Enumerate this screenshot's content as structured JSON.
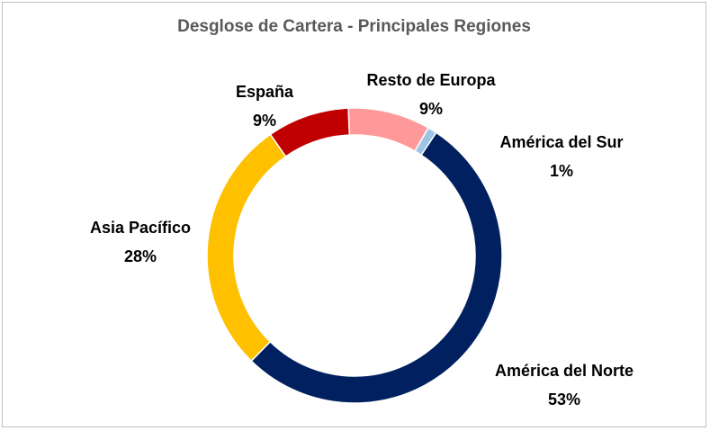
{
  "chart_data": {
    "type": "pie",
    "variant": "donut",
    "title": "Desglose de Cartera - Principales Regiones",
    "legend": "none",
    "slices": [
      {
        "label": "América del Sur",
        "value": 1,
        "display": "1%",
        "color": "#9dc3e6"
      },
      {
        "label": "América del Norte",
        "value": 53,
        "display": "53%",
        "color": "#002060"
      },
      {
        "label": "Asia Pacífico",
        "value": 28,
        "display": "28%",
        "color": "#ffc000"
      },
      {
        "label": "España",
        "value": 9,
        "display": "9%",
        "color": "#c00000"
      },
      {
        "label": "Resto de Europa",
        "value": 9,
        "display": "9%",
        "color": "#ff9999"
      }
    ]
  }
}
